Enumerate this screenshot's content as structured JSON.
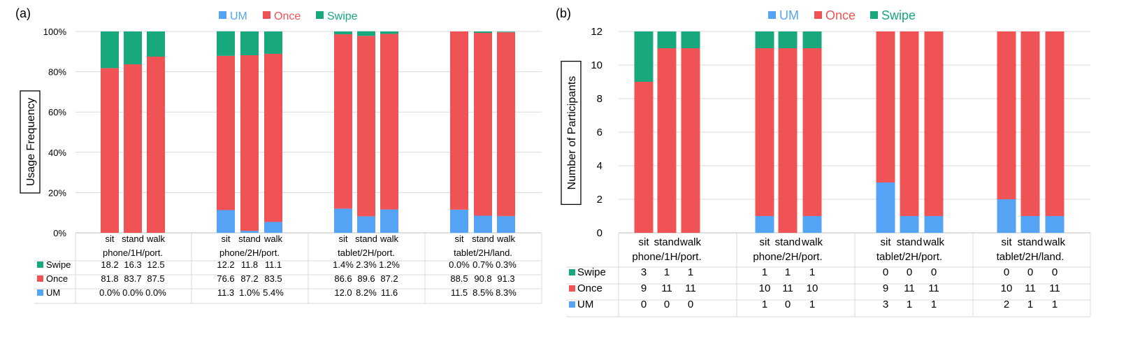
{
  "colors": {
    "um": "#55a3f5",
    "once": "#f05356",
    "swipe": "#17a87e",
    "grid": "#d9d9d9",
    "axis": "#bfbfbf"
  },
  "chart_data": [
    {
      "type": "bar",
      "stacked": true,
      "panel_label": "(a)",
      "ylabel": "Usage Frequency",
      "ylim": [
        0,
        100
      ],
      "yticks": [
        "0%",
        "20%",
        "40%",
        "60%",
        "80%",
        "100%"
      ],
      "legend": [
        "UM",
        "Once",
        "Swipe"
      ],
      "legend_position": "top",
      "groups": [
        "phone/1H/port.",
        "phone/2H/port.",
        "tablet/2H/port.",
        "tablet/2H/land."
      ],
      "categories": [
        "sit",
        "stand",
        "walk"
      ],
      "series": [
        {
          "name": "UM",
          "values": [
            [
              0,
              0,
              0
            ],
            [
              11.3,
              1.0,
              5.4
            ],
            [
              12.0,
              8.2,
              11.6
            ],
            [
              11.5,
              8.5,
              8.3
            ]
          ]
        },
        {
          "name": "Once",
          "values": [
            [
              81.8,
              83.7,
              87.5
            ],
            [
              76.6,
              87.2,
              83.5
            ],
            [
              86.6,
              89.6,
              87.2
            ],
            [
              88.5,
              90.8,
              91.3
            ]
          ]
        },
        {
          "name": "Swipe",
          "values": [
            [
              18.2,
              16.3,
              12.5
            ],
            [
              12.2,
              11.8,
              11.1
            ],
            [
              1.4,
              2.3,
              1.2
            ],
            [
              0.0,
              0.7,
              0.3
            ]
          ]
        }
      ],
      "table": {
        "Swipe": [
          [
            "18.2",
            "16.3",
            "12.5"
          ],
          [
            "12.2",
            "11.8",
            "11.1"
          ],
          [
            "1.4%",
            "2.3%",
            "1.2%"
          ],
          [
            "0.0%",
            "0.7%",
            "0.3%"
          ]
        ],
        "Once": [
          [
            "81.8",
            "83.7",
            "87.5"
          ],
          [
            "76.6",
            "87.2",
            "83.5"
          ],
          [
            "86.6",
            "89.6",
            "87.2"
          ],
          [
            "88.5",
            "90.8",
            "91.3"
          ]
        ],
        "UM": [
          [
            "0.0%",
            "0.0%",
            "0.0%"
          ],
          [
            "11.3",
            "1.0%",
            "5.4%"
          ],
          [
            "12.0",
            "8.2%",
            "11.6"
          ],
          [
            "11.5",
            "8.5%",
            "8.3%"
          ]
        ]
      }
    },
    {
      "type": "bar",
      "stacked": true,
      "panel_label": "(b)",
      "ylabel": "Number of Participants",
      "ylim": [
        0,
        12
      ],
      "yticks": [
        "0",
        "2",
        "4",
        "6",
        "8",
        "10",
        "12"
      ],
      "legend": [
        "UM",
        "Once",
        "Swipe"
      ],
      "legend_position": "top",
      "groups": [
        "phone/1H/port.",
        "phone/2H/port.",
        "tablet/2H/port.",
        "tablet/2H/land."
      ],
      "categories": [
        "sit",
        "stand",
        "walk"
      ],
      "series": [
        {
          "name": "UM",
          "values": [
            [
              0,
              0,
              0
            ],
            [
              1,
              0,
              1
            ],
            [
              3,
              1,
              1
            ],
            [
              2,
              1,
              1
            ]
          ]
        },
        {
          "name": "Once",
          "values": [
            [
              9,
              11,
              11
            ],
            [
              10,
              11,
              10
            ],
            [
              9,
              11,
              11
            ],
            [
              10,
              11,
              11
            ]
          ]
        },
        {
          "name": "Swipe",
          "values": [
            [
              3,
              1,
              1
            ],
            [
              1,
              1,
              1
            ],
            [
              0,
              0,
              0
            ],
            [
              0,
              0,
              0
            ]
          ]
        }
      ],
      "table": {
        "Swipe": [
          [
            "3",
            "1",
            "1"
          ],
          [
            "1",
            "1",
            "1"
          ],
          [
            "0",
            "0",
            "0"
          ],
          [
            "0",
            "0",
            "0"
          ]
        ],
        "Once": [
          [
            "9",
            "11",
            "11"
          ],
          [
            "10",
            "11",
            "10"
          ],
          [
            "9",
            "11",
            "11"
          ],
          [
            "10",
            "11",
            "11"
          ]
        ],
        "UM": [
          [
            "0",
            "0",
            "0"
          ],
          [
            "1",
            "0",
            "1"
          ],
          [
            "3",
            "1",
            "1"
          ],
          [
            "2",
            "1",
            "1"
          ]
        ]
      }
    }
  ]
}
